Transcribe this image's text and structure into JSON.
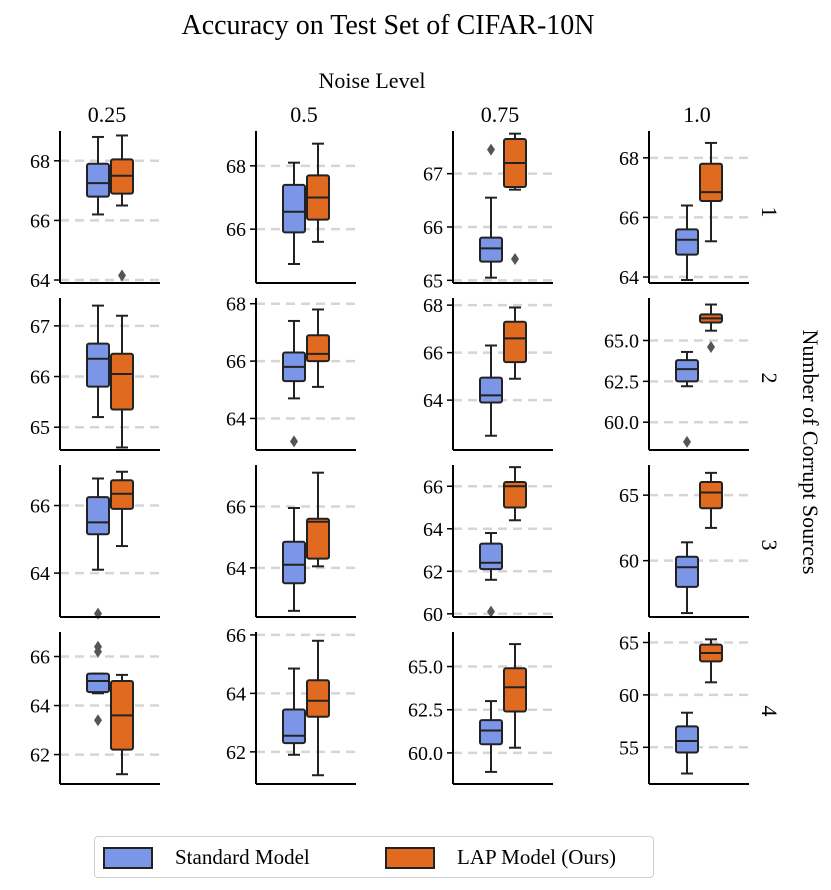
{
  "colors": {
    "standard": "#7b96e6",
    "lap": "#e06a1f",
    "grid": "#d5d5d5",
    "edge": "#222222"
  },
  "chart_data": {
    "type": "box",
    "title": "Accuracy on Test Set of CIFAR-10N",
    "col_header_title": "Noise Level",
    "col_labels": [
      "0.25",
      "0.5",
      "0.75",
      "1.0"
    ],
    "row_header_title": "Number of Corrupt Sources",
    "row_labels": [
      "1",
      "2",
      "3",
      "4"
    ],
    "series": [
      "Standard Model",
      "LAP Model (Ours)"
    ],
    "panels": [
      {
        "row": "1",
        "col": "0.25",
        "ylim": [
          63.9,
          69.0
        ],
        "yticks": [
          64,
          66,
          68
        ],
        "yticklabels": [
          "64",
          "66",
          "68"
        ],
        "boxes": [
          {
            "series": "Standard Model",
            "whislo": 66.2,
            "q1": 66.8,
            "med": 67.25,
            "q3": 67.9,
            "whishi": 68.8,
            "fliers": []
          },
          {
            "series": "LAP Model (Ours)",
            "whislo": 66.5,
            "q1": 66.9,
            "med": 67.5,
            "q3": 68.05,
            "whishi": 68.85,
            "fliers": [
              64.15
            ]
          }
        ]
      },
      {
        "row": "1",
        "col": "0.5",
        "ylim": [
          64.3,
          69.1
        ],
        "yticks": [
          66,
          68
        ],
        "yticklabels": [
          "66",
          "68"
        ],
        "boxes": [
          {
            "series": "Standard Model",
            "whislo": 64.9,
            "q1": 65.9,
            "med": 66.55,
            "q3": 67.4,
            "whishi": 68.1,
            "fliers": []
          },
          {
            "series": "LAP Model (Ours)",
            "whislo": 65.6,
            "q1": 66.3,
            "med": 67.0,
            "q3": 67.7,
            "whishi": 68.7,
            "fliers": []
          }
        ]
      },
      {
        "row": "1",
        "col": "0.75",
        "ylim": [
          64.95,
          67.8
        ],
        "yticks": [
          65,
          66,
          67
        ],
        "yticklabels": [
          "65",
          "66",
          "67"
        ],
        "boxes": [
          {
            "series": "Standard Model",
            "whislo": 65.05,
            "q1": 65.35,
            "med": 65.6,
            "q3": 65.8,
            "whishi": 66.55,
            "fliers": [
              67.45
            ]
          },
          {
            "series": "LAP Model (Ours)",
            "whislo": 66.7,
            "q1": 66.75,
            "med": 67.2,
            "q3": 67.65,
            "whishi": 67.75,
            "fliers": [
              65.4
            ]
          }
        ]
      },
      {
        "row": "1",
        "col": "1.0",
        "ylim": [
          63.8,
          68.9
        ],
        "yticks": [
          64,
          66,
          68
        ],
        "yticklabels": [
          "64",
          "66",
          "68"
        ],
        "boxes": [
          {
            "series": "Standard Model",
            "whislo": 63.9,
            "q1": 64.75,
            "med": 65.25,
            "q3": 65.6,
            "whishi": 66.4,
            "fliers": []
          },
          {
            "series": "LAP Model (Ours)",
            "whislo": 65.2,
            "q1": 66.55,
            "med": 66.85,
            "q3": 67.8,
            "whishi": 68.5,
            "fliers": []
          }
        ]
      },
      {
        "row": "2",
        "col": "0.25",
        "ylim": [
          64.55,
          67.55
        ],
        "yticks": [
          65,
          66,
          67
        ],
        "yticklabels": [
          "65",
          "66",
          "67"
        ],
        "boxes": [
          {
            "series": "Standard Model",
            "whislo": 65.2,
            "q1": 65.8,
            "med": 66.35,
            "q3": 66.65,
            "whishi": 67.4,
            "fliers": []
          },
          {
            "series": "LAP Model (Ours)",
            "whislo": 64.6,
            "q1": 65.35,
            "med": 66.05,
            "q3": 66.45,
            "whishi": 67.2,
            "fliers": []
          }
        ]
      },
      {
        "row": "2",
        "col": "0.5",
        "ylim": [
          62.9,
          68.2
        ],
        "yticks": [
          64,
          66,
          68
        ],
        "yticklabels": [
          "64",
          "66",
          "68"
        ],
        "boxes": [
          {
            "series": "Standard Model",
            "whislo": 64.7,
            "q1": 65.3,
            "med": 65.8,
            "q3": 66.3,
            "whishi": 67.4,
            "fliers": [
              63.2
            ]
          },
          {
            "series": "LAP Model (Ours)",
            "whislo": 65.1,
            "q1": 66.0,
            "med": 66.25,
            "q3": 66.9,
            "whishi": 67.8,
            "fliers": []
          }
        ]
      },
      {
        "row": "2",
        "col": "0.75",
        "ylim": [
          61.9,
          68.3
        ],
        "yticks": [
          64,
          66,
          68
        ],
        "yticklabels": [
          "64",
          "66",
          "68"
        ],
        "boxes": [
          {
            "series": "Standard Model",
            "whislo": 62.5,
            "q1": 63.9,
            "med": 64.2,
            "q3": 64.95,
            "whishi": 66.3,
            "fliers": []
          },
          {
            "series": "LAP Model (Ours)",
            "whislo": 64.9,
            "q1": 65.6,
            "med": 66.6,
            "q3": 67.3,
            "whishi": 67.9,
            "fliers": []
          }
        ]
      },
      {
        "row": "2",
        "col": "1.0",
        "ylim": [
          58.3,
          67.6
        ],
        "yticks": [
          60.0,
          62.5,
          65.0
        ],
        "yticklabels": [
          "60.0",
          "62.5",
          "65.0"
        ],
        "boxes": [
          {
            "series": "Standard Model",
            "whislo": 62.2,
            "q1": 62.5,
            "med": 63.25,
            "q3": 63.8,
            "whishi": 64.3,
            "fliers": [
              58.8
            ]
          },
          {
            "series": "LAP Model (Ours)",
            "whislo": 65.6,
            "q1": 66.1,
            "med": 66.35,
            "q3": 66.6,
            "whishi": 67.2,
            "fliers": [
              64.6
            ]
          }
        ]
      },
      {
        "row": "3",
        "col": "0.25",
        "ylim": [
          62.7,
          67.2
        ],
        "yticks": [
          64,
          66
        ],
        "yticklabels": [
          "64",
          "66"
        ],
        "boxes": [
          {
            "series": "Standard Model",
            "whislo": 64.1,
            "q1": 65.15,
            "med": 65.5,
            "q3": 66.25,
            "whishi": 66.8,
            "fliers": [
              62.8
            ]
          },
          {
            "series": "LAP Model (Ours)",
            "whislo": 64.8,
            "q1": 65.9,
            "med": 66.35,
            "q3": 66.75,
            "whishi": 67.0,
            "fliers": []
          }
        ]
      },
      {
        "row": "3",
        "col": "0.5",
        "ylim": [
          62.4,
          67.35
        ],
        "yticks": [
          64,
          66
        ],
        "yticklabels": [
          "64",
          "66"
        ],
        "boxes": [
          {
            "series": "Standard Model",
            "whislo": 62.6,
            "q1": 63.5,
            "med": 64.1,
            "q3": 64.85,
            "whishi": 65.95,
            "fliers": []
          },
          {
            "series": "LAP Model (Ours)",
            "whislo": 64.05,
            "q1": 64.3,
            "med": 65.5,
            "q3": 65.6,
            "whishi": 67.1,
            "fliers": []
          }
        ]
      },
      {
        "row": "3",
        "col": "0.75",
        "ylim": [
          59.85,
          67.0
        ],
        "yticks": [
          60,
          62,
          64,
          66
        ],
        "yticklabels": [
          "60",
          "62",
          "64",
          "66"
        ],
        "boxes": [
          {
            "series": "Standard Model",
            "whislo": 61.6,
            "q1": 62.1,
            "med": 62.4,
            "q3": 63.3,
            "whishi": 63.8,
            "fliers": [
              60.1
            ]
          },
          {
            "series": "LAP Model (Ours)",
            "whislo": 64.4,
            "q1": 65.0,
            "med": 66.0,
            "q3": 66.2,
            "whishi": 66.9,
            "fliers": []
          }
        ]
      },
      {
        "row": "3",
        "col": "1.0",
        "ylim": [
          55.7,
          67.3
        ],
        "yticks": [
          60,
          65
        ],
        "yticklabels": [
          "60",
          "65"
        ],
        "boxes": [
          {
            "series": "Standard Model",
            "whislo": 56.0,
            "q1": 58.0,
            "med": 59.5,
            "q3": 60.3,
            "whishi": 61.4,
            "fliers": []
          },
          {
            "series": "LAP Model (Ours)",
            "whislo": 62.5,
            "q1": 64.0,
            "med": 65.2,
            "q3": 66.0,
            "whishi": 66.7,
            "fliers": []
          }
        ]
      },
      {
        "row": "4",
        "col": "0.25",
        "ylim": [
          60.8,
          67.0
        ],
        "yticks": [
          62,
          64,
          66
        ],
        "yticklabels": [
          "62",
          "64",
          "66"
        ],
        "boxes": [
          {
            "series": "Standard Model",
            "whislo": 64.5,
            "q1": 64.55,
            "med": 65.0,
            "q3": 65.3,
            "whishi": 65.3,
            "fliers": [
              66.2,
              66.4,
              63.4
            ]
          },
          {
            "series": "LAP Model (Ours)",
            "whislo": 61.2,
            "q1": 62.2,
            "med": 63.6,
            "q3": 65.0,
            "whishi": 65.25,
            "fliers": []
          }
        ]
      },
      {
        "row": "4",
        "col": "0.5",
        "ylim": [
          60.9,
          66.1
        ],
        "yticks": [
          62,
          64,
          66
        ],
        "yticklabels": [
          "62",
          "64",
          "66"
        ],
        "boxes": [
          {
            "series": "Standard Model",
            "whislo": 61.9,
            "q1": 62.3,
            "med": 62.55,
            "q3": 63.45,
            "whishi": 64.85,
            "fliers": []
          },
          {
            "series": "LAP Model (Ours)",
            "whislo": 61.2,
            "q1": 63.2,
            "med": 63.75,
            "q3": 64.45,
            "whishi": 65.8,
            "fliers": []
          }
        ]
      },
      {
        "row": "4",
        "col": "0.75",
        "ylim": [
          58.2,
          67.0
        ],
        "yticks": [
          60.0,
          62.5,
          65.0
        ],
        "yticklabels": [
          "60.0",
          "62.5",
          "65.0"
        ],
        "boxes": [
          {
            "series": "Standard Model",
            "whislo": 58.9,
            "q1": 60.5,
            "med": 61.3,
            "q3": 61.9,
            "whishi": 63.0,
            "fliers": []
          },
          {
            "series": "LAP Model (Ours)",
            "whislo": 60.3,
            "q1": 62.4,
            "med": 63.8,
            "q3": 64.9,
            "whishi": 66.3,
            "fliers": []
          }
        ]
      },
      {
        "row": "4",
        "col": "1.0",
        "ylim": [
          51.5,
          66.0
        ],
        "yticks": [
          55,
          60,
          65
        ],
        "yticklabels": [
          "55",
          "60",
          "65"
        ],
        "boxes": [
          {
            "series": "Standard Model",
            "whislo": 52.5,
            "q1": 54.5,
            "med": 55.6,
            "q3": 57.0,
            "whishi": 58.3,
            "fliers": []
          },
          {
            "series": "LAP Model (Ours)",
            "whislo": 61.2,
            "q1": 63.2,
            "med": 64.0,
            "q3": 64.8,
            "whishi": 65.3,
            "fliers": []
          }
        ]
      }
    ]
  }
}
